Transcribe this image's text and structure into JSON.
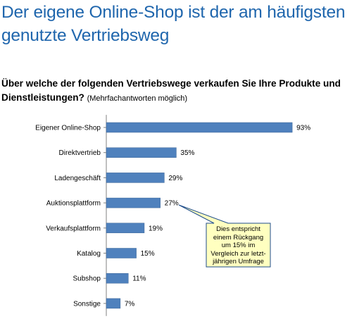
{
  "header": {
    "title_line1": "Der eigene Online-Shop ist der am häufigsten",
    "title_line2": "genutzte Vertriebsweg"
  },
  "question": {
    "text": "Über welche der folgenden Vertriebswege verkaufen Sie Ihre Produkte und Dienstleistungen?",
    "note": "(Mehrfachantworten möglich)"
  },
  "callout": {
    "text": "Dies entspricht einem Rückgang um 15% im Vergleich zur letzt-jährigen Umfrage",
    "fill": "#ffffc0",
    "border": "#1f4e8c"
  },
  "colors": {
    "bar": "#4f81bd",
    "title": "#1f66ad",
    "axis": "#808080"
  },
  "chart_data": {
    "type": "bar",
    "orientation": "horizontal",
    "categories": [
      "Eigener Online-Shop",
      "Direktvertrieb",
      "Ladengeschäft",
      "Auktionsplattform",
      "Verkaufsplattform",
      "Katalog",
      "Subshop",
      "Sonstige"
    ],
    "values": [
      93,
      35,
      29,
      27,
      19,
      15,
      11,
      7
    ],
    "value_labels": [
      "93%",
      "35%",
      "29%",
      "27%",
      "19%",
      "15%",
      "11%",
      "7%"
    ],
    "unit": "%",
    "xlim": [
      0,
      100
    ],
    "grid": false,
    "legend": "none"
  }
}
